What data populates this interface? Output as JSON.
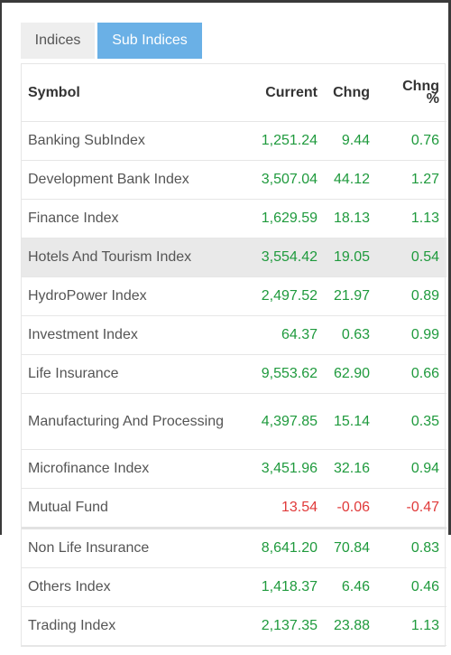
{
  "tabs": [
    {
      "label": "Indices",
      "active": false
    },
    {
      "label": "Sub Indices",
      "active": true
    }
  ],
  "colors": {
    "accent": "#6ab0e6",
    "positive": "#1f9a3d",
    "negative": "#e03a3a"
  },
  "table": {
    "headers": {
      "symbol": "Symbol",
      "current": "Current",
      "chng": "Chng",
      "chng_pct_line1": "Chng",
      "chng_pct_line2": "%"
    },
    "rows": [
      {
        "symbol": "Banking SubIndex",
        "current": "1,251.24",
        "chng": "9.44",
        "pct": "0.76",
        "dir": "up"
      },
      {
        "symbol": "Development Bank Index",
        "current": "3,507.04",
        "chng": "44.12",
        "pct": "1.27",
        "dir": "up"
      },
      {
        "symbol": "Finance Index",
        "current": "1,629.59",
        "chng": "18.13",
        "pct": "1.13",
        "dir": "up"
      },
      {
        "symbol": "Hotels And Tourism Index",
        "current": "3,554.42",
        "chng": "19.05",
        "pct": "0.54",
        "dir": "up",
        "highlighted": true
      },
      {
        "symbol": "HydroPower Index",
        "current": "2,497.52",
        "chng": "21.97",
        "pct": "0.89",
        "dir": "up"
      },
      {
        "symbol": "Investment Index",
        "current": "64.37",
        "chng": "0.63",
        "pct": "0.99",
        "dir": "up"
      },
      {
        "symbol": "Life Insurance",
        "current": "9,553.62",
        "chng": "62.90",
        "pct": "0.66",
        "dir": "up"
      },
      {
        "symbol": "Manufacturing And Processing",
        "current": "4,397.85",
        "chng": "15.14",
        "pct": "0.35",
        "dir": "up",
        "tall": true
      },
      {
        "symbol": "Microfinance Index",
        "current": "3,451.96",
        "chng": "32.16",
        "pct": "0.94",
        "dir": "up"
      },
      {
        "symbol": "Mutual Fund",
        "current": "13.54",
        "chng": "-0.06",
        "pct": "-0.47",
        "dir": "down",
        "thick": true
      },
      {
        "symbol": "Non Life Insurance",
        "current": "8,641.20",
        "chng": "70.84",
        "pct": "0.83",
        "dir": "up"
      },
      {
        "symbol": "Others Index",
        "current": "1,418.37",
        "chng": "6.46",
        "pct": "0.46",
        "dir": "up"
      },
      {
        "symbol": "Trading Index",
        "current": "2,137.35",
        "chng": "23.88",
        "pct": "1.13",
        "dir": "up"
      }
    ]
  }
}
